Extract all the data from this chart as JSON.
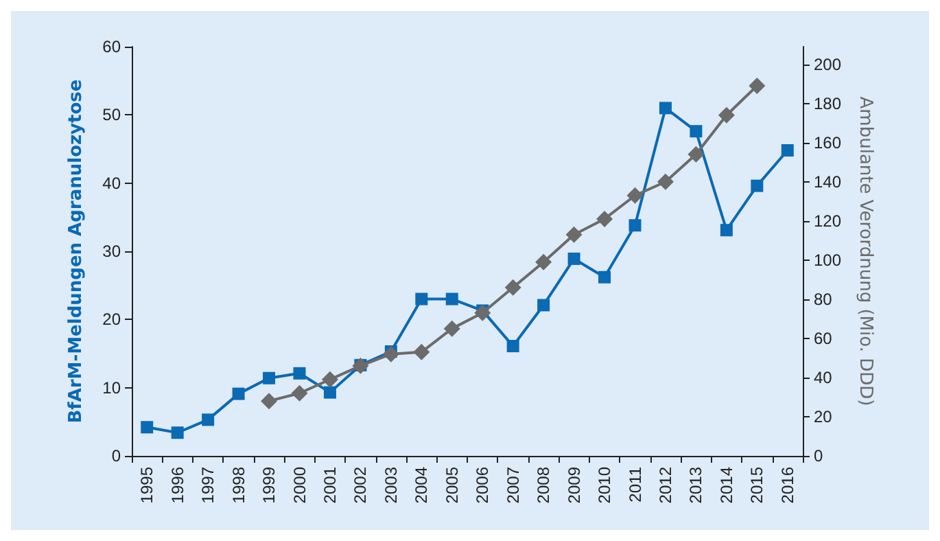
{
  "chart_data": {
    "type": "line",
    "ylabel": "BfArM-Meldungen Agranulozytose",
    "y2label": "Ambulante Verordnung (Mio. DDD)",
    "categories": [
      "1995",
      "1996",
      "1997",
      "1998",
      "1999",
      "2000",
      "2001",
      "2002",
      "2003",
      "2004",
      "2005",
      "2006",
      "2007",
      "2008",
      "2009",
      "2010",
      "2011",
      "2012",
      "2013",
      "2014",
      "2015",
      "2016"
    ],
    "series": [
      {
        "color": "#0a6ab4",
        "marker": "square",
        "values": [
          4.2,
          3.4,
          5.3,
          9.1,
          11.4,
          12.1,
          9.3,
          13.3,
          15.3,
          23.0,
          23.0,
          21.3,
          16.1,
          22.1,
          28.9,
          26.2,
          33.8,
          51.0,
          47.6,
          33.1,
          39.6,
          44.8
        ]
      },
      {
        "color": "#6b6b6b",
        "marker": "diamond",
        "axis": "y2",
        "values": [
          null,
          null,
          null,
          null,
          28,
          32,
          39,
          46,
          52,
          53,
          65,
          73,
          86,
          99,
          113,
          121,
          133,
          140,
          154,
          174,
          189,
          null
        ]
      }
    ],
    "ylim": [
      0,
      60
    ],
    "yticks": [
      0,
      10,
      20,
      30,
      40,
      50,
      60
    ],
    "y2lim": [
      0,
      209
    ],
    "y2ticks": [
      0,
      20,
      40,
      60,
      80,
      100,
      120,
      140,
      160,
      180,
      200
    ],
    "grid": false,
    "line_style": "solid"
  }
}
